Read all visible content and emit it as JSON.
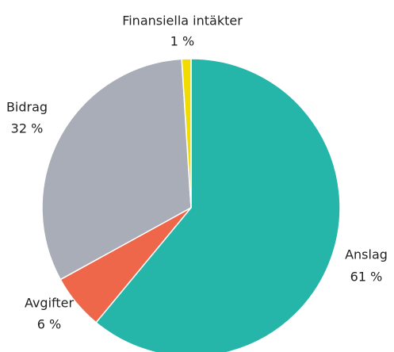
{
  "chart_data": {
    "type": "pie",
    "categories": [
      "Anslag",
      "Avgifter",
      "Bidrag",
      "Finansiella intäkter"
    ],
    "values": [
      61,
      6,
      32,
      1
    ],
    "value_labels": [
      "61 %",
      "6 %",
      "32 %",
      "1 %"
    ],
    "colors": [
      "#25b5a9",
      "#ef674b",
      "#a9adb8",
      "#f2dc00"
    ]
  }
}
